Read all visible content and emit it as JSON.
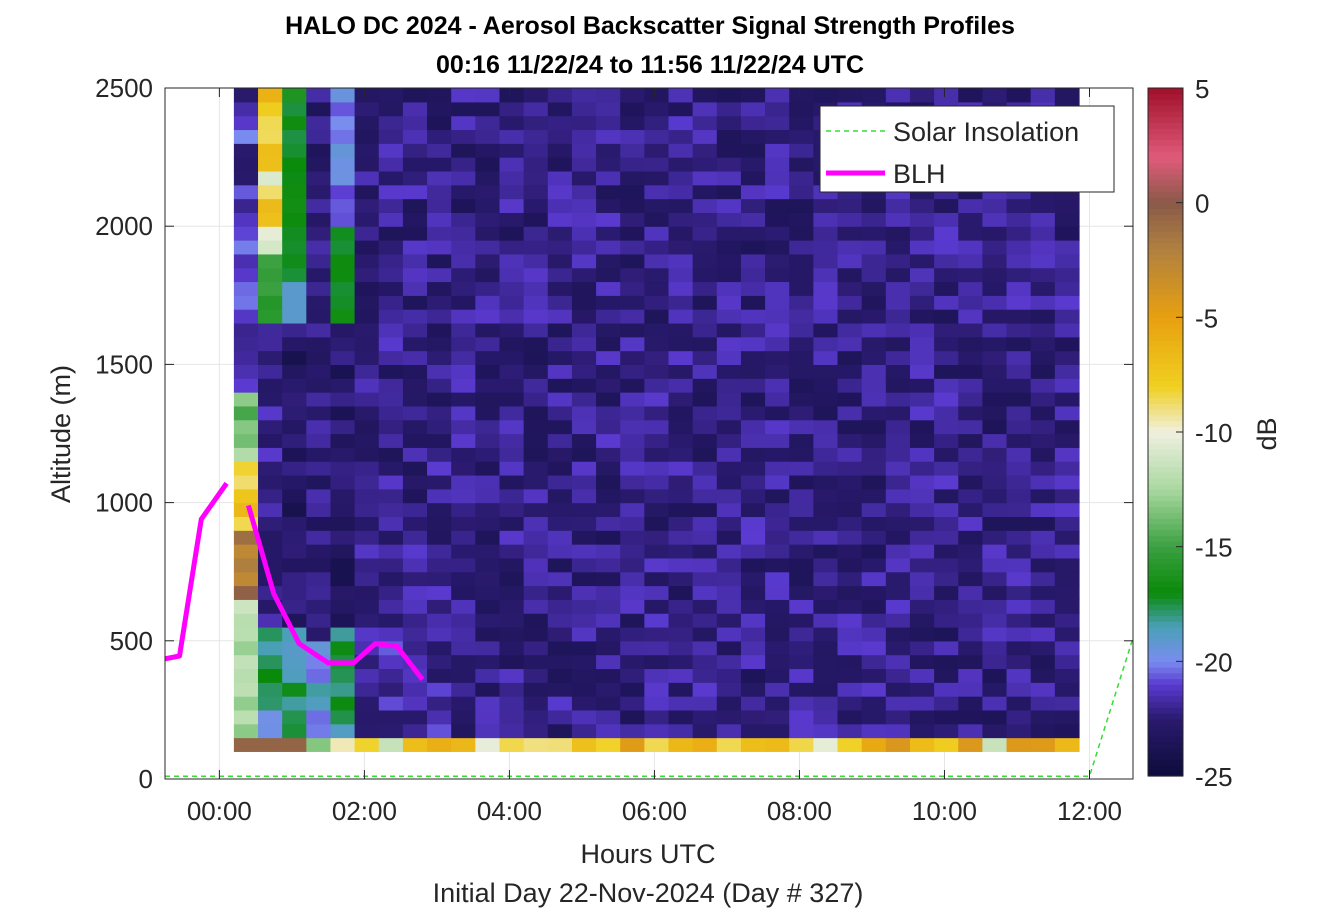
{
  "chart_data": {
    "type": "heatmap",
    "title": "HALO DC 2024 - Aerosol Backscatter Signal Strength Profiles",
    "subtitle": "00:16 11/22/24 to 11:56 11/22/24  UTC",
    "xlabel": "Hours UTC",
    "footer": "Initial Day 22-Nov-2024 (Day # 327)",
    "ylabel": "Altitude (m)",
    "colorbar_label": "dB",
    "x_ticks": [
      "00:00",
      "02:00",
      "04:00",
      "06:00",
      "08:00",
      "10:00",
      "12:00"
    ],
    "x_tick_hours": [
      0,
      2,
      4,
      6,
      8,
      10,
      12
    ],
    "y_ticks": [
      "0",
      "500",
      "1000",
      "1500",
      "2000",
      "2500"
    ],
    "y_tick_values": [
      0,
      500,
      1000,
      1500,
      2000,
      2500
    ],
    "colorbar_ticks": [
      "5",
      "0",
      "-5",
      "-10",
      "-15",
      "-20",
      "-25"
    ],
    "colorbar_tick_values": [
      5,
      0,
      -5,
      -10,
      -15,
      -20,
      -25
    ],
    "xlim_hours": [
      -0.75,
      12.6
    ],
    "ylim": [
      0,
      2500
    ],
    "clim": [
      -25,
      5
    ],
    "grid": true,
    "legend_position": "top-right",
    "legend": [
      {
        "name": "Solar Insolation",
        "color": "#33dd33",
        "style": "dashed"
      },
      {
        "name": "BLH",
        "color": "#ff00ff",
        "style": "solid"
      }
    ],
    "heatmap": {
      "x_start_hour": 0.2,
      "bin_hours": 0.333,
      "columns": 35,
      "y_start_m": 100,
      "bin_m": 50,
      "rows": 48,
      "colormap": [
        [
          -25,
          "#0c0c3a"
        ],
        [
          -22.5,
          "#2a1a6e"
        ],
        [
          -21,
          "#5a3ad0"
        ],
        [
          -20,
          "#7a8cf0"
        ],
        [
          -18.5,
          "#4aa0b8"
        ],
        [
          -17,
          "#0a8a0a"
        ],
        [
          -15,
          "#3aa040"
        ],
        [
          -12.5,
          "#a8d8a0"
        ],
        [
          -10,
          "#f0f0e0"
        ],
        [
          -8,
          "#f0d020"
        ],
        [
          -5,
          "#e8a010"
        ],
        [
          -2,
          "#b08040"
        ],
        [
          0,
          "#8a5a48"
        ],
        [
          2,
          "#e05a7a"
        ],
        [
          5,
          "#a0102a"
        ]
      ]
    },
    "series": [
      {
        "name": "BLH",
        "color": "#ff00ff",
        "segments": [
          {
            "x": [
              -0.75,
              -0.55,
              -0.25,
              0.1
            ],
            "y": [
              435,
              445,
              940,
              1070
            ]
          },
          {
            "x": [
              0.4,
              0.75,
              1.1,
              1.5,
              1.85,
              2.15,
              2.45,
              2.8
            ],
            "y": [
              990,
              670,
              490,
              420,
              420,
              490,
              480,
              360
            ]
          }
        ]
      },
      {
        "name": "Solar Insolation",
        "color": "#33dd33",
        "x": [
          -0.75,
          12.0,
          12.6
        ],
        "y": [
          10,
          10,
          510
        ]
      }
    ]
  }
}
